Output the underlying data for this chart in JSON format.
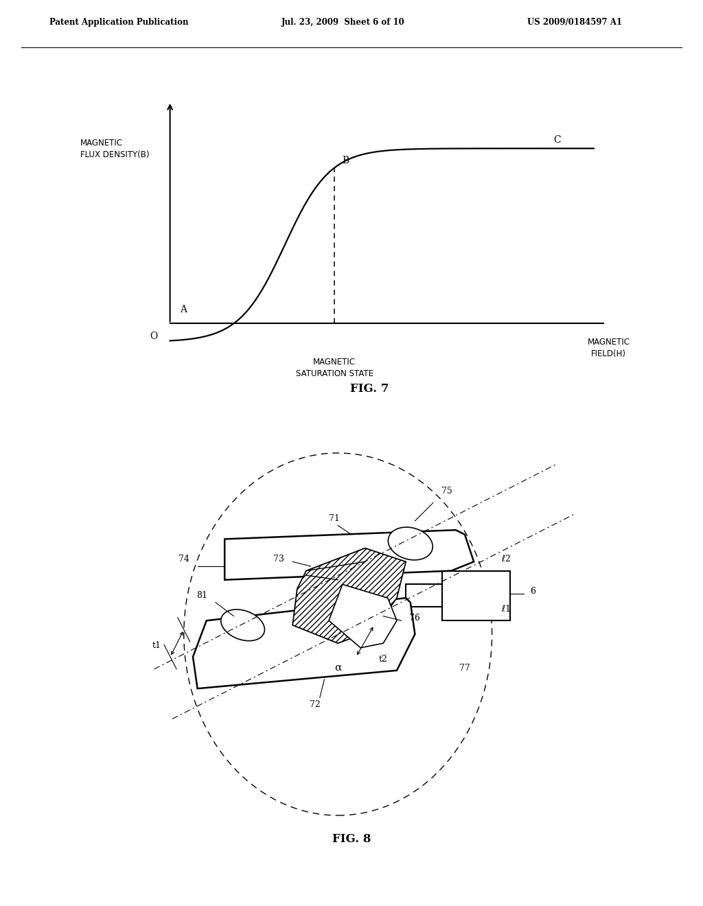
{
  "background_color": "#ffffff",
  "header_text": "Patent Application Publication",
  "header_date": "Jul. 23, 2009  Sheet 6 of 10",
  "header_patent": "US 2009/0184597 A1",
  "fig7_title": "FIG. 7",
  "fig8_title": "FIG. 8",
  "ylabel_fig7": "MAGNETIC\nFLUX DENSITY(B)",
  "xlabel_fig7_mid": "MAGNETIC\nSATURATION STATE",
  "xlabel_fig7_right": "MAGNETIC\nFIELD(H)",
  "label_O": "O",
  "label_A": "A",
  "label_B": "B",
  "label_C": "C",
  "text_color": "#000000",
  "line_color": "#000000"
}
